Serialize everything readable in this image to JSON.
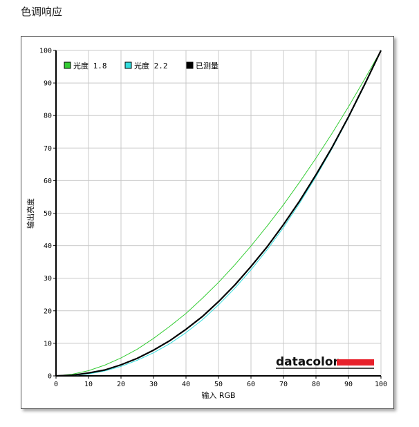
{
  "page": {
    "title": "色调响应"
  },
  "brand": {
    "name": "datacolor",
    "accent_color": "#e8212b"
  },
  "chart_data": {
    "type": "line",
    "xlabel": "输入 RGB",
    "ylabel": "输出亮度",
    "xlim": [
      0,
      100
    ],
    "ylim": [
      0,
      100
    ],
    "xticks": [
      0,
      10,
      20,
      30,
      40,
      50,
      60,
      70,
      80,
      90,
      100
    ],
    "yticks": [
      0,
      10,
      20,
      30,
      40,
      50,
      60,
      70,
      80,
      90,
      100
    ],
    "grid": true,
    "legend_position": "top-left",
    "x": [
      0,
      5,
      10,
      15,
      20,
      25,
      30,
      35,
      40,
      45,
      50,
      55,
      60,
      65,
      70,
      75,
      80,
      85,
      90,
      95,
      100
    ],
    "series": [
      {
        "name": "光度 1.8",
        "color": "#33cc33",
        "width": 1,
        "values": [
          0,
          0.5,
          1.6,
          3.3,
          5.5,
          8.2,
          11.5,
          15.2,
          19.2,
          23.8,
          28.7,
          34.1,
          39.9,
          46.1,
          52.6,
          59.6,
          66.9,
          74.6,
          82.7,
          91.2,
          100
        ]
      },
      {
        "name": "光度 2.2",
        "color": "#33dddd",
        "width": 1,
        "values": [
          0,
          0.1,
          0.6,
          1.5,
          2.9,
          4.8,
          7.1,
          9.9,
          13.3,
          17.2,
          21.8,
          26.9,
          32.6,
          38.8,
          45.6,
          53.1,
          61.2,
          69.9,
          79.3,
          89.3,
          100
        ]
      },
      {
        "name": "已测量",
        "color": "#000000",
        "width": 2.2,
        "values": [
          0,
          0.2,
          0.9,
          1.8,
          3.4,
          5.4,
          7.9,
          10.8,
          14.3,
          18.2,
          22.8,
          27.9,
          33.6,
          39.7,
          46.5,
          53.8,
          61.8,
          70.3,
          79.6,
          89.6,
          100
        ]
      }
    ]
  }
}
